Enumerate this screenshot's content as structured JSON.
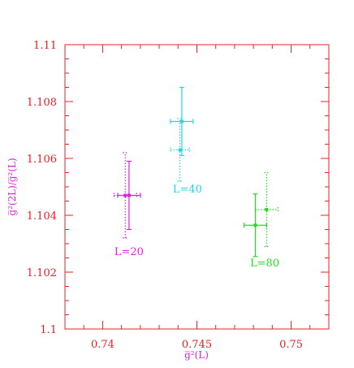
{
  "chart_data": {
    "type": "scatter",
    "title": "",
    "xlabel": "g̅²(L)",
    "ylabel": "g̅²(2L)/g̅²(L)",
    "xlim": [
      0.738,
      0.752
    ],
    "ylim": [
      1.1,
      1.11
    ],
    "xticks": [
      0.74,
      0.745,
      0.75
    ],
    "xtick_labels": [
      "0.74",
      "0.745",
      "0.75"
    ],
    "yticks": [
      1.1,
      1.102,
      1.104,
      1.106,
      1.108,
      1.11
    ],
    "ytick_labels": [
      "1.1",
      "1.102",
      "1.104",
      "1.106",
      "1.108",
      "1.11"
    ],
    "grid": false,
    "series": [
      {
        "name": "L=20",
        "color": "#dd22dd",
        "label_pos": [
          0.7414,
          1.1026
        ],
        "points": [
          {
            "x": 0.7414,
            "xerr": 0.0006,
            "y": 1.1047,
            "yerr": 0.0012,
            "style": "solid"
          },
          {
            "x": 0.7412,
            "xerr": 0.0006,
            "y": 1.1047,
            "yerr": 0.0015,
            "style": "dotted"
          }
        ]
      },
      {
        "name": "L=40",
        "color": "#22d8e0",
        "label_pos": [
          0.7445,
          1.1048
        ],
        "points": [
          {
            "x": 0.7442,
            "xerr": 0.0006,
            "y": 1.1073,
            "yerr": 0.0012,
            "style": "solid"
          },
          {
            "x": 0.7441,
            "xerr": 0.0005,
            "y": 1.1063,
            "yerr": 0.0011,
            "style": "dotted"
          }
        ]
      },
      {
        "name": "L=80",
        "color": "#22dd22",
        "label_pos": [
          0.7486,
          1.1022
        ],
        "points": [
          {
            "x": 0.7481,
            "xerr": 0.0006,
            "y": 1.10365,
            "yerr": 0.0011,
            "style": "solid"
          },
          {
            "x": 0.7487,
            "xerr": 0.0006,
            "y": 1.1042,
            "yerr": 0.0013,
            "style": "dotted"
          }
        ]
      }
    ]
  },
  "colors": {
    "axis": "#e8202a",
    "ylabel": "#dd22dd",
    "xlabel": "#dd22dd"
  }
}
